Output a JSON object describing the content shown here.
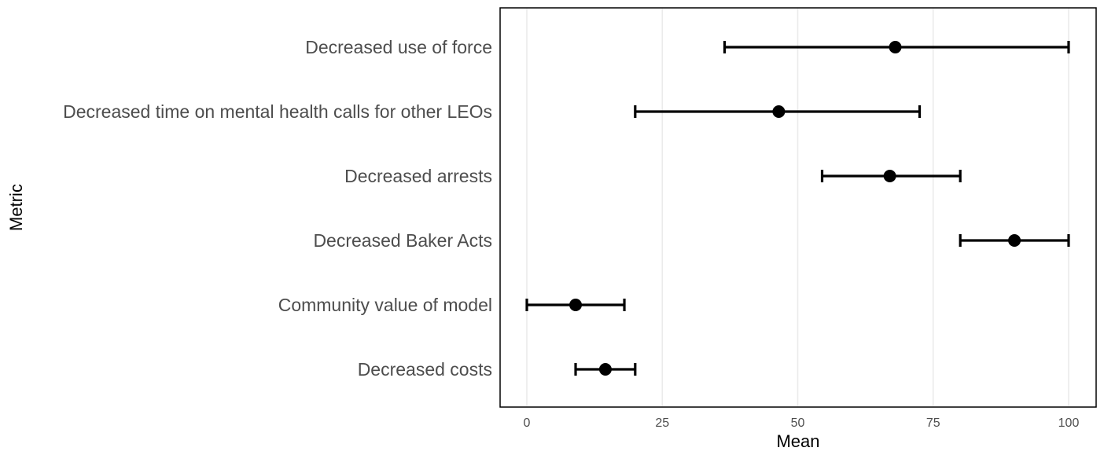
{
  "chart_data": {
    "type": "errorbar",
    "xlabel": "Mean",
    "ylabel": "Metric",
    "xlim": [
      -5,
      105
    ],
    "xticks": [
      0,
      25,
      50,
      75,
      100
    ],
    "grid": true,
    "colors": {
      "mark": "#000000",
      "grid": "#ebebeb",
      "frame": "#000000",
      "label": "#4d4d4d"
    },
    "points": [
      {
        "label": "Decreased use of force",
        "mean": 68,
        "low": 36.5,
        "high": 100
      },
      {
        "label": "Decreased time on mental health calls for other LEOs",
        "mean": 46.5,
        "low": 20,
        "high": 72.5
      },
      {
        "label": "Decreased arrests",
        "mean": 67,
        "low": 54.5,
        "high": 80
      },
      {
        "label": "Decreased Baker Acts",
        "mean": 90,
        "low": 80,
        "high": 100
      },
      {
        "label": "Community value of model",
        "mean": 9,
        "low": 0,
        "high": 18
      },
      {
        "label": "Decreased costs",
        "mean": 14.5,
        "low": 9,
        "high": 20
      }
    ]
  }
}
